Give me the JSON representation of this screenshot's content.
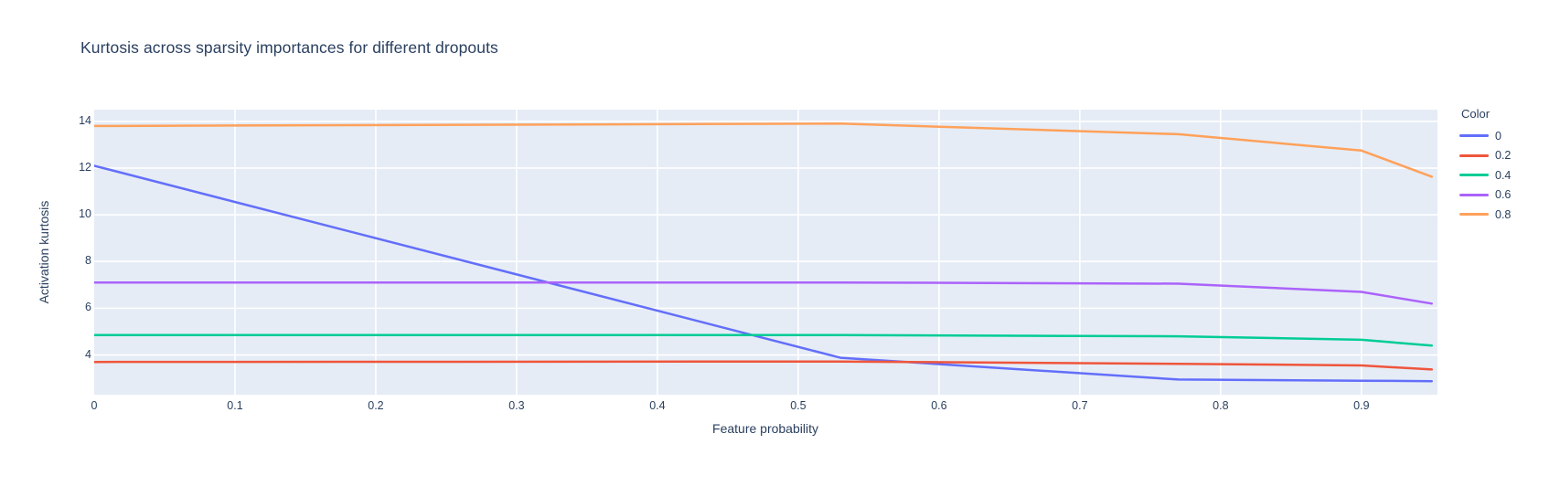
{
  "chart_data": {
    "type": "line",
    "title": "Kurtosis across sparsity importances for different dropouts",
    "xlabel": "Feature probability",
    "ylabel": "Activation kurtosis",
    "legend_title": "Color",
    "legend_position": "right-top-outside",
    "grid": true,
    "plot_bg_color": "#E5ECF6",
    "grid_color": "#FFFFFF",
    "text_color": "#2a3f5f",
    "xlim": [
      0,
      0.954
    ],
    "ylim": [
      2.3,
      14.5
    ],
    "xticks": [
      "0",
      "0.1",
      "0.2",
      "0.3",
      "0.4",
      "0.5",
      "0.6",
      "0.7",
      "0.8",
      "0.9"
    ],
    "yticks": [
      "4",
      "6",
      "8",
      "10",
      "12",
      "14"
    ],
    "x": [
      0,
      0.53,
      0.77,
      0.9,
      0.95
    ],
    "series": [
      {
        "name": "0",
        "color": "#636EFA",
        "values": [
          12.1,
          3.88,
          2.95,
          2.9,
          2.88
        ]
      },
      {
        "name": "0.2",
        "color": "#EF553B",
        "values": [
          3.7,
          3.72,
          3.62,
          3.55,
          3.38
        ]
      },
      {
        "name": "0.4",
        "color": "#00CC96",
        "values": [
          4.85,
          4.85,
          4.8,
          4.65,
          4.4
        ]
      },
      {
        "name": "0.6",
        "color": "#AB63FA",
        "values": [
          7.1,
          7.1,
          7.05,
          6.7,
          6.2
        ]
      },
      {
        "name": "0.8",
        "color": "#FFA15A",
        "values": [
          13.8,
          13.9,
          13.45,
          12.75,
          11.63
        ]
      }
    ]
  }
}
